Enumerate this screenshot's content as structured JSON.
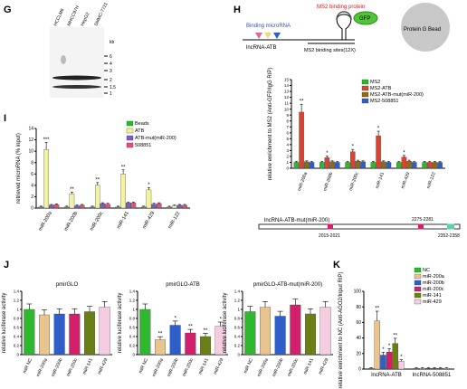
{
  "colors": {
    "beads": "#2db82d",
    "atb": "#f2f2a0",
    "atbmut": "#7a5cc7",
    "n508851": "#e34f7a",
    "ms2": "#2db82d",
    "ms2atb": "#d94432",
    "ms2mut": "#8b6a1b",
    "ms2_508851": "#2e5fc8",
    "nc": "#2db82d",
    "m200a": "#e8c48e",
    "m200b": "#2f5ec9",
    "m200c": "#d4206c",
    "m141": "#6b7f17",
    "m429": "#f5cde0"
  },
  "panel_labels": {
    "G": "G",
    "H": "H",
    "I": "I",
    "J": "J",
    "K": "K"
  },
  "panel_g": {
    "lanes": [
      "HCCLM6",
      "MHCC97H",
      "HepG2",
      "SMMC-7721"
    ],
    "unit": "kb",
    "markers": [
      "6",
      "4",
      "3",
      "2",
      "1.5",
      "1"
    ]
  },
  "panel_h": {
    "ms2_binding_protein": "MS2 binding protein",
    "binding_microrna": "Binding microRNA",
    "gfp": "GFP",
    "protein_g_bead": "Protein G Bead",
    "lncrna": "lncRNA-ATB",
    "ms2_sites": "MS2 binding sites(12X)",
    "mut_construct": "lncRNA-ATB-mut(miR-200)",
    "pos1": "2275-2281",
    "pos2": "2015-2021",
    "pos3": "2352-2358"
  },
  "chart_data": [
    {
      "id": "I",
      "type": "bar",
      "categories": [
        "miR-200a",
        "miR-200b",
        "miR-200c",
        "miR-141",
        "miR-429",
        "miR-122"
      ],
      "series": [
        {
          "name": "Beads",
          "values": [
            0.2,
            0.2,
            0.2,
            0.2,
            0.2,
            0.2
          ]
        },
        {
          "name": "ATB",
          "values": [
            10.3,
            2.5,
            4.0,
            6.0,
            3.2,
            0.4
          ]
        },
        {
          "name": "ATB-mut(miR-200)",
          "values": [
            0.5,
            0.4,
            0.8,
            0.9,
            0.7,
            0.5
          ]
        },
        {
          "name": "508851",
          "values": [
            0.6,
            0.5,
            0.7,
            0.9,
            0.8,
            0.5
          ]
        }
      ],
      "stars": [
        "***",
        "**",
        "**",
        "**",
        "*",
        ""
      ],
      "ylabel": "retrieved microRNA (% input)",
      "ylim": [
        0,
        14
      ],
      "yticks": [
        0,
        2,
        4,
        6,
        8,
        10,
        12,
        14
      ]
    },
    {
      "id": "H",
      "type": "bar",
      "categories": [
        "miR-200a",
        "miR-200b",
        "miR-200c",
        "miR-141",
        "miR-429",
        "miR-122"
      ],
      "series": [
        {
          "name": "MS2",
          "values": [
            1,
            1,
            1,
            1,
            1,
            1
          ]
        },
        {
          "name": "MS2-ATB",
          "values": [
            9.5,
            1.8,
            2.8,
            5.5,
            1.9,
            1.0
          ]
        },
        {
          "name": "MS2-ATB-mut(miR-200)",
          "values": [
            1.1,
            1.1,
            1.2,
            1.1,
            1.2,
            1.0
          ]
        },
        {
          "name": "MS2-508851",
          "values": [
            1.0,
            1.0,
            1.1,
            1.0,
            1.0,
            1.0
          ]
        }
      ],
      "stars": [
        "**",
        "*",
        "*",
        "*",
        "*",
        ""
      ],
      "ylabel": "relative enrichment to MS2 (Anti-GFP/IgG RIP)",
      "ylim": [
        0,
        15
      ],
      "yticks": [
        0,
        1,
        2,
        3,
        4,
        5,
        6,
        7,
        8,
        9,
        10,
        11,
        12,
        13,
        14,
        15
      ]
    },
    {
      "id": "J1",
      "type": "bar",
      "title": "pmirGLO",
      "categories": [
        "miR NC",
        "miR-200a",
        "miR-200b",
        "miR-200c",
        "miR-141",
        "miR-429"
      ],
      "values": [
        1.0,
        0.88,
        0.9,
        0.9,
        0.95,
        1.05
      ],
      "ylabel": "relative luciferase activity",
      "ylim": [
        0,
        1.4
      ],
      "yticks": [
        0,
        0.2,
        0.4,
        0.6,
        0.8,
        1.0,
        1.2,
        1.4
      ]
    },
    {
      "id": "J2",
      "type": "bar",
      "title": "pmirGLO-ATB",
      "categories": [
        "miR NC",
        "miR-200a",
        "miR-200b",
        "miR-200c",
        "miR-141",
        "miR-429"
      ],
      "values": [
        1.0,
        0.33,
        0.65,
        0.48,
        0.4,
        0.63
      ],
      "stars": [
        "",
        "**",
        "*",
        "**",
        "**",
        "*"
      ],
      "ylabel": "relative luciferase activity",
      "ylim": [
        0,
        1.4
      ],
      "yticks": [
        0,
        0.2,
        0.4,
        0.6,
        0.8,
        1.0,
        1.2,
        1.4
      ]
    },
    {
      "id": "J3",
      "type": "bar",
      "title": "pmirGLO-ATB-mut(miR-200)",
      "categories": [
        "miR NC",
        "miR-200a",
        "miR-200b",
        "miR-200c",
        "miR-141",
        "miR-429"
      ],
      "values": [
        0.95,
        1.05,
        0.85,
        1.1,
        0.9,
        1.05
      ],
      "ylabel": "relative luciferase activity",
      "ylim": [
        0,
        1.4
      ],
      "yticks": [
        0,
        0.2,
        0.4,
        0.6,
        0.8,
        1.0,
        1.2,
        1.4
      ]
    },
    {
      "id": "K",
      "type": "bar",
      "categories": [
        "lncRNA-ATB",
        "lncRNA-508851"
      ],
      "series": [
        {
          "name": "NC",
          "values": [
            1,
            1
          ]
        },
        {
          "name": "miR-200a",
          "values": [
            62,
            1
          ]
        },
        {
          "name": "miR-200b",
          "values": [
            18,
            1
          ]
        },
        {
          "name": "miR-200c",
          "values": [
            22,
            1
          ]
        },
        {
          "name": "miR-141",
          "values": [
            33,
            1
          ]
        },
        {
          "name": "miR-429",
          "values": [
            10,
            1
          ]
        }
      ],
      "stars": [
        "",
        "**",
        "*",
        "*",
        "**",
        "*"
      ],
      "ylabel": "relative enrichment to NC (Anti-AGO2/Input RIP)",
      "ylim": [
        0,
        100
      ],
      "yticks": [
        0,
        20,
        40,
        60,
        80,
        100
      ]
    }
  ]
}
